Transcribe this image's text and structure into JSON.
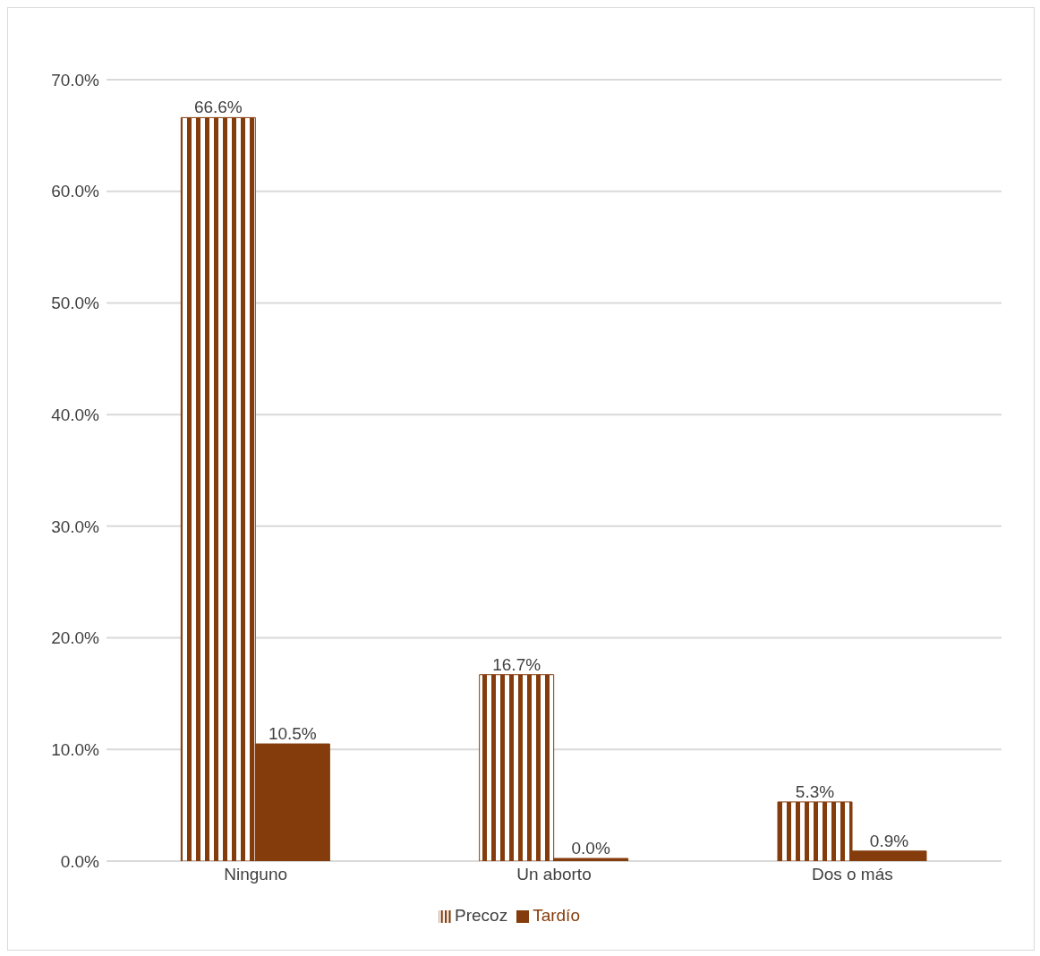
{
  "chart_data": {
    "type": "bar",
    "categories": [
      "Ninguno",
      "Un aborto",
      "Dos o más"
    ],
    "series": [
      {
        "name": "Precoz",
        "color": "#843c0c",
        "values": [
          66.6,
          16.7,
          5.3
        ],
        "value_labels": [
          "66.6%",
          "16.7%",
          "5.3%"
        ]
      },
      {
        "name": "Tardío",
        "color": "#843c0c",
        "values": [
          10.5,
          0.0,
          0.9
        ],
        "value_labels": [
          "10.5%",
          "0.0%",
          "0.9%"
        ]
      }
    ],
    "ylim": [
      0,
      70
    ],
    "yticks": [
      {
        "value": 0,
        "label": "0.0%"
      },
      {
        "value": 10,
        "label": "10.0%"
      },
      {
        "value": 20,
        "label": "20.0%"
      },
      {
        "value": 30,
        "label": "30.0%"
      },
      {
        "value": 40,
        "label": "40.0%"
      },
      {
        "value": 50,
        "label": "50.0%"
      },
      {
        "value": 60,
        "label": "60.0%"
      },
      {
        "value": 70,
        "label": "70.0%"
      }
    ],
    "grid": "y",
    "legend": "bottom"
  }
}
